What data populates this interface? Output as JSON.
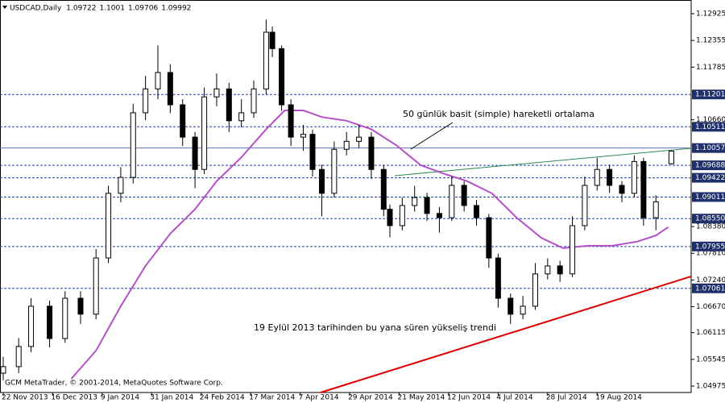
{
  "chart_data": {
    "type": "candlestick",
    "title": "USDCAD,Daily",
    "footer": "GCM MetaTrader, © 2001-2014, MetaQuotes Software Corp.",
    "annotations": [
      "50 günlük basit (simple) hareketli ortalama",
      "19 Eylül 2013 tarihinden bu yana süren yükseliş trendi"
    ],
    "x": [
      0,
      5,
      9,
      15,
      20,
      25,
      30,
      34,
      38,
      42,
      46,
      50,
      54,
      58,
      62,
      65,
      69,
      73,
      77,
      81,
      85,
      87,
      90,
      93,
      97,
      100,
      103,
      107,
      111,
      115,
      119,
      123,
      125,
      129,
      133,
      137,
      141,
      145,
      149,
      153,
      157,
      160,
      164,
      168,
      172,
      176,
      180,
      184,
      188,
      192,
      196,
      200,
      204,
      207,
      211,
      216
    ],
    "open": [
      1.0525,
      1.0539,
      1.0582,
      1.0668,
      1.0599,
      1.0685,
      1.0651,
      1.0771,
      1.0909,
      1.0943,
      1.1081,
      1.1132,
      1.1167,
      1.1098,
      1.1029,
      1.096,
      1.1115,
      1.1132,
      1.1064,
      1.1081,
      1.1132,
      1.1253,
      1.1218,
      1.1098,
      1.1029,
      1.1035,
      1.096,
      1.0909,
      1.1003,
      1.102,
      1.1029,
      1.096,
      1.0875,
      1.084,
      1.0883,
      1.09,
      1.0866,
      1.0857,
      1.0926,
      1.0883,
      1.0857,
      1.0771,
      1.0685,
      1.0651,
      1.0668,
      1.0737,
      1.0754,
      1.0737,
      1.084,
      1.0926,
      1.096,
      1.0926,
      1.0909,
      1.0977,
      1.0857,
      1.09722
    ],
    "high": [
      1.056,
      1.06,
      1.0685,
      1.068,
      1.07,
      1.07,
      1.079,
      1.0925,
      1.0965,
      1.11,
      1.116,
      1.1225,
      1.1185,
      1.111,
      1.104,
      1.1135,
      1.1165,
      1.1145,
      1.111,
      1.115,
      1.128,
      1.1265,
      1.1225,
      1.111,
      1.1055,
      1.1045,
      1.097,
      1.102,
      1.104,
      1.1055,
      1.104,
      1.097,
      1.0885,
      1.09,
      1.0925,
      1.091,
      1.088,
      1.0945,
      1.0935,
      1.0895,
      1.0865,
      1.078,
      1.0695,
      1.069,
      1.076,
      1.077,
      1.0765,
      1.086,
      1.0945,
      1.0985,
      1.097,
      1.0935,
      1.099,
      1.0985,
      1.0905,
      1.1001
    ],
    "low": [
      1.051,
      1.0525,
      1.057,
      1.058,
      1.059,
      1.063,
      1.064,
      1.076,
      1.089,
      1.093,
      1.1065,
      1.111,
      1.108,
      1.101,
      1.092,
      1.095,
      1.1095,
      1.104,
      1.105,
      1.107,
      1.112,
      1.12,
      1.1085,
      1.101,
      1.1,
      1.0945,
      1.086,
      1.09,
      1.099,
      1.1005,
      1.094,
      1.086,
      1.0815,
      1.083,
      1.087,
      1.085,
      1.0825,
      1.085,
      1.087,
      1.084,
      1.075,
      1.0665,
      1.063,
      1.064,
      1.066,
      1.0725,
      1.072,
      1.073,
      1.083,
      1.0915,
      1.091,
      1.089,
      1.09,
      1.084,
      1.083,
      1.09706
    ],
    "close": [
      1.0539,
      1.0582,
      1.0668,
      1.0599,
      1.0685,
      1.0651,
      1.0771,
      1.0909,
      1.0943,
      1.1081,
      1.1132,
      1.1167,
      1.1098,
      1.1029,
      1.096,
      1.1115,
      1.1132,
      1.1064,
      1.1081,
      1.1132,
      1.1253,
      1.1218,
      1.1098,
      1.1029,
      1.1035,
      1.096,
      1.0909,
      1.1003,
      1.102,
      1.1029,
      1.096,
      1.0875,
      1.084,
      1.0883,
      1.09,
      1.0866,
      1.0857,
      1.0926,
      1.0883,
      1.0857,
      1.0771,
      1.0685,
      1.0651,
      1.0668,
      1.0737,
      1.0754,
      1.0737,
      1.084,
      1.0926,
      1.096,
      1.0926,
      1.0909,
      1.0977,
      1.0857,
      1.0891,
      1.09992
    ],
    "moving_average": {
      "color": "#b44fc8",
      "x": [
        22,
        30,
        38,
        46,
        54,
        62,
        69,
        77,
        85,
        91,
        97,
        103,
        111,
        119,
        127,
        135,
        142,
        150,
        158,
        166,
        174,
        181,
        189,
        197,
        205,
        211,
        215
      ],
      "values": [
        1.0513,
        1.0573,
        1.0668,
        1.0754,
        1.0823,
        1.0875,
        1.0935,
        1.0986,
        1.1046,
        1.1086,
        1.1086,
        1.1072,
        1.1064,
        1.1046,
        1.1012,
        1.0969,
        1.0952,
        1.0935,
        1.0909,
        1.0857,
        1.0814,
        1.0792,
        1.0797,
        1.0797,
        1.0806,
        1.0819,
        1.0837
      ]
    },
    "trendlines": [
      {
        "color": "#e00000",
        "x": [
          102.6,
          222.4
        ],
        "y": [
          1.04837,
          1.07316
        ]
      },
      {
        "color": "#2e8b57",
        "x": [
          126.6,
          222.4
        ],
        "y": [
          1.09467,
          1.10052
        ]
      }
    ],
    "levels": [
      1.11201,
      1.10511,
      1.09688,
      1.09422,
      1.09011,
      {
        "value": 1.0855,
        "label": "1.08550"
      },
      1.07955,
      1.07061
    ],
    "current_price": 1.10057,
    "xlim": [
      -1.04,
      222.4
    ],
    "ylim": [
      1.04837,
      1.13218
    ],
    "xticks": [
      {
        "value": 0,
        "label": "22 Nov 2013"
      },
      {
        "value": 16,
        "label": "16 Dec 2013"
      },
      {
        "value": 32,
        "label": "9 Jan 2014"
      },
      {
        "value": 48,
        "label": "31 Jan 2014"
      },
      {
        "value": 64,
        "label": "24 Feb 2014"
      },
      {
        "value": 80,
        "label": "17 Mar 2014"
      },
      {
        "value": 96,
        "label": "7 Apr 2014"
      },
      {
        "value": 112,
        "label": "29 Apr 2014"
      },
      {
        "value": 128,
        "label": "21 May 2014"
      },
      {
        "value": 144,
        "label": "12 Jun 2014"
      },
      {
        "value": 160,
        "label": "4 Jul 2014"
      },
      {
        "value": 176,
        "label": "28 Jul 2014"
      },
      {
        "value": 192,
        "label": "19 Aug 2014"
      }
    ],
    "yticks": [
      1.12925,
      1.12355,
      1.11785,
      {
        "value": 1.1066,
        "label": "1.10660"
      },
      {
        "value": 1.0838,
        "label": "1.08380"
      },
      {
        "value": 1.0781,
        "label": "1.07810"
      },
      {
        "value": 1.0724,
        "label": "1.07240"
      },
      {
        "value": 1.0667,
        "label": "1.06670"
      },
      1.06115,
      1.05545,
      1.04975
    ]
  }
}
